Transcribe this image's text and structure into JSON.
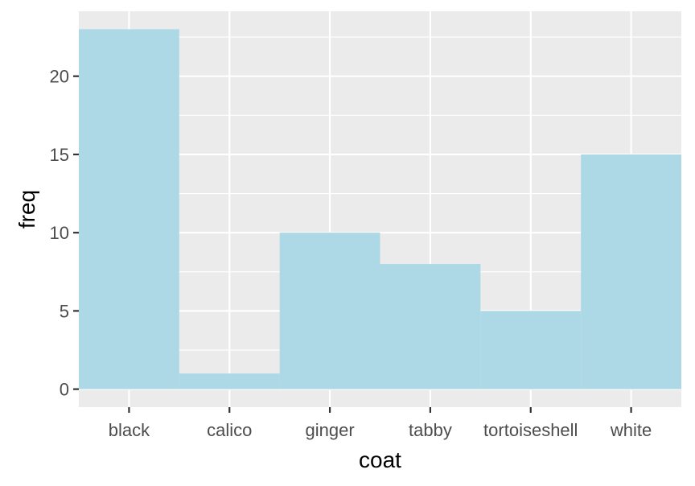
{
  "chart_data": {
    "type": "bar",
    "title": "",
    "xlabel": "coat",
    "ylabel": "freq",
    "categories": [
      "black",
      "calico",
      "ginger",
      "tabby",
      "tortoiseshell",
      "white"
    ],
    "values": [
      23,
      1,
      10,
      8,
      5,
      15
    ],
    "ylim": [
      -1.15,
      24.15
    ],
    "yticks": [
      0,
      5,
      10,
      15,
      20
    ],
    "grid": true,
    "legend": "none",
    "colors": {
      "panel_background": "#ebebeb",
      "gridline": "#ffffff",
      "bar_fill": "#add8e6",
      "tick_mark": "#333333",
      "tick_text": "#4d4d4d",
      "axis_title": "#000000"
    }
  }
}
